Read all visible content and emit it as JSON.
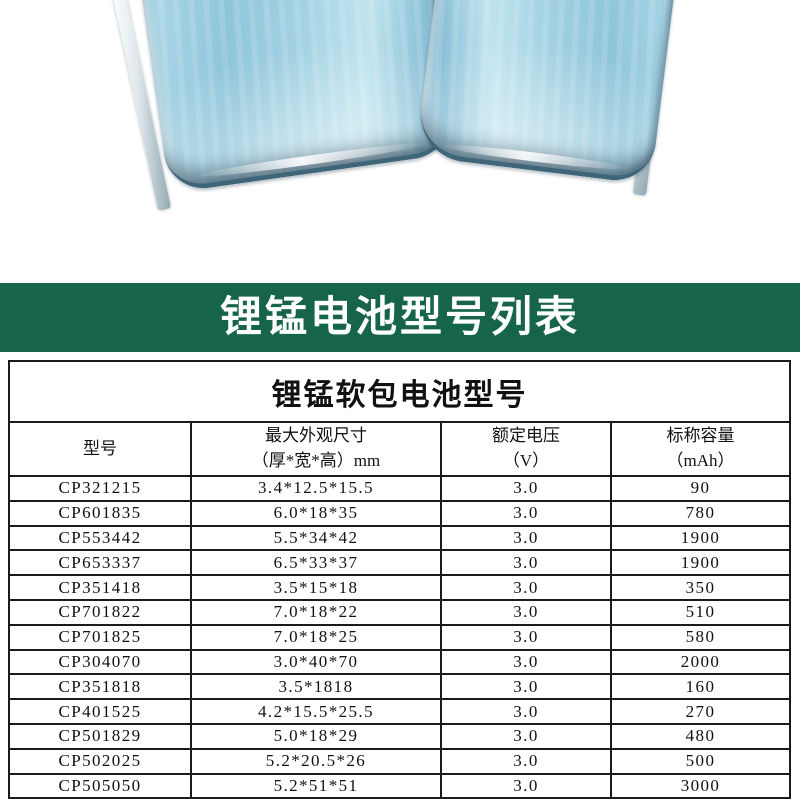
{
  "colors": {
    "banner-bg": "#176549",
    "banner-text": "#ffffff",
    "table-border": "#1b1b1b",
    "text": "#111111",
    "battery-body": "#9bcee1",
    "battery-edge": "#3f6579",
    "battery-foil": "#e2eaee"
  },
  "hero": {
    "description": "两块浅蓝色锂锰软包电池（底部视角，顶部被裁切）"
  },
  "banner": {
    "title": "锂锰电池型号列表"
  },
  "table": {
    "title": "锂锰软包电池型号",
    "columns": [
      "型号",
      "最大外观尺寸\n（厚*宽*高）mm",
      "额定电压\n（V）",
      "标称容量\n（mAh）"
    ],
    "rows": [
      [
        "CP321215",
        "3.4*12.5*15.5",
        "3.0",
        "90"
      ],
      [
        "CP601835",
        "6.0*18*35",
        "3.0",
        "780"
      ],
      [
        "CP553442",
        "5.5*34*42",
        "3.0",
        "1900"
      ],
      [
        "CP653337",
        "6.5*33*37",
        "3.0",
        "1900"
      ],
      [
        "CP351418",
        "3.5*15*18",
        "3.0",
        "350"
      ],
      [
        "CP701822",
        "7.0*18*22",
        "3.0",
        "510"
      ],
      [
        "CP701825",
        "7.0*18*25",
        "3.0",
        "580"
      ],
      [
        "CP304070",
        "3.0*40*70",
        "3.0",
        "2000"
      ],
      [
        "CP351818",
        "3.5*1818",
        "3.0",
        "160"
      ],
      [
        "CP401525",
        "4.2*15.5*25.5",
        "3.0",
        "270"
      ],
      [
        "CP501829",
        "5.0*18*29",
        "3.0",
        "480"
      ],
      [
        "CP502025",
        "5.2*20.5*26",
        "3.0",
        "500"
      ],
      [
        "CP505050",
        "5.2*51*51",
        "3.0",
        "3000"
      ]
    ]
  }
}
